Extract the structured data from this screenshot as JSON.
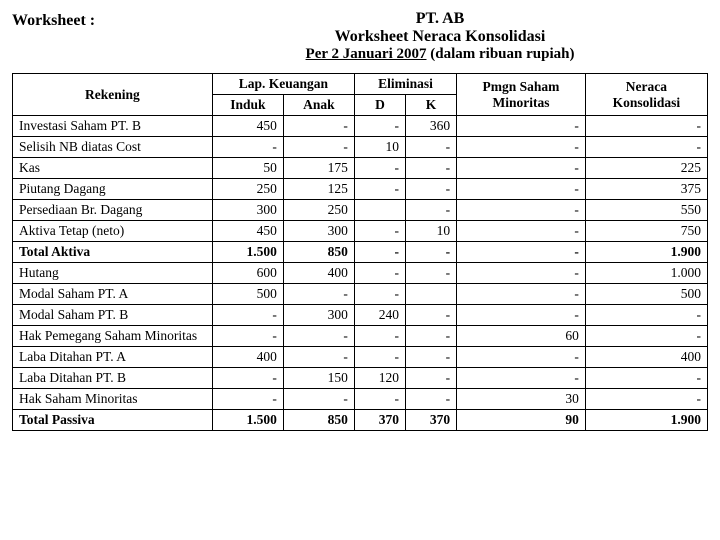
{
  "header": {
    "worksheet_label": "Worksheet  :",
    "company": "PT. AB",
    "title": "Worksheet Neraca Konsolidasi",
    "date_prefix": "Per 2 Januari 2007",
    "date_note": " (dalam ribuan rupiah)"
  },
  "columns": {
    "rekening": "Rekening",
    "lap_keuangan": "Lap. Keuangan",
    "eliminasi": "Eliminasi",
    "induk": "Induk",
    "anak": "Anak",
    "d": "D",
    "k": "K",
    "pm": "Pmgn Saham Minoritas",
    "nk": "Neraca Konsolidasi"
  },
  "rows": [
    {
      "label": "Investasi Saham PT. B",
      "induk": "450",
      "anak": "-",
      "d": "-",
      "k": "360",
      "pm": "-",
      "nk": "-",
      "bold": false
    },
    {
      "label": "Selisih NB diatas Cost",
      "induk": "-",
      "anak": "-",
      "d": "10",
      "k": "-",
      "pm": "-",
      "nk": "-",
      "bold": false
    },
    {
      "label": "Kas",
      "induk": "50",
      "anak": "175",
      "d": "-",
      "k": "-",
      "pm": "-",
      "nk": "225",
      "bold": false
    },
    {
      "label": "Piutang Dagang",
      "induk": "250",
      "anak": "125",
      "d": "-",
      "k": "-",
      "pm": "-",
      "nk": "375",
      "bold": false
    },
    {
      "label": "Persediaan Br. Dagang",
      "induk": "300",
      "anak": "250",
      "d": "",
      "k": "-",
      "pm": "-",
      "nk": "550",
      "bold": false
    },
    {
      "label": "Aktiva Tetap (neto)",
      "induk": "450",
      "anak": "300",
      "d": "-",
      "k": "10",
      "pm": "-",
      "nk": "750",
      "bold": false
    },
    {
      "label": "Total Aktiva",
      "induk": "1.500",
      "anak": "850",
      "d": "-",
      "k": "-",
      "pm": "-",
      "nk": "1.900",
      "bold": true
    },
    {
      "label": "Hutang",
      "induk": "600",
      "anak": "400",
      "d": "-",
      "k": "-",
      "pm": "-",
      "nk": "1.000",
      "bold": false
    },
    {
      "label": "Modal Saham PT. A",
      "induk": "500",
      "anak": "-",
      "d": "-",
      "k": "",
      "pm": "-",
      "nk": "500",
      "bold": false
    },
    {
      "label": "Modal Saham PT. B",
      "induk": "-",
      "anak": "300",
      "d": "240",
      "k": "-",
      "pm": "-",
      "nk": "-",
      "bold": false
    },
    {
      "label": "Hak Pemegang Saham Minoritas",
      "induk": "-",
      "anak": "-",
      "d": "-",
      "k": "-",
      "pm": "60",
      "nk": "-",
      "bold": false
    },
    {
      "label": "Laba Ditahan PT. A",
      "induk": "400",
      "anak": "-",
      "d": "-",
      "k": "-",
      "pm": "-",
      "nk": "400",
      "bold": false
    },
    {
      "label": "Laba Ditahan PT. B",
      "induk": "-",
      "anak": "150",
      "d": "120",
      "k": "-",
      "pm": "-",
      "nk": "-",
      "bold": false
    },
    {
      "label": "Hak Saham Minoritas",
      "induk": "-",
      "anak": "-",
      "d": "-",
      "k": "-",
      "pm": "30",
      "nk": "-",
      "bold": false
    },
    {
      "label": "Total Passiva",
      "induk": "1.500",
      "anak": "850",
      "d": "370",
      "k": "370",
      "pm": "90",
      "nk": "1.900",
      "bold": true
    }
  ]
}
